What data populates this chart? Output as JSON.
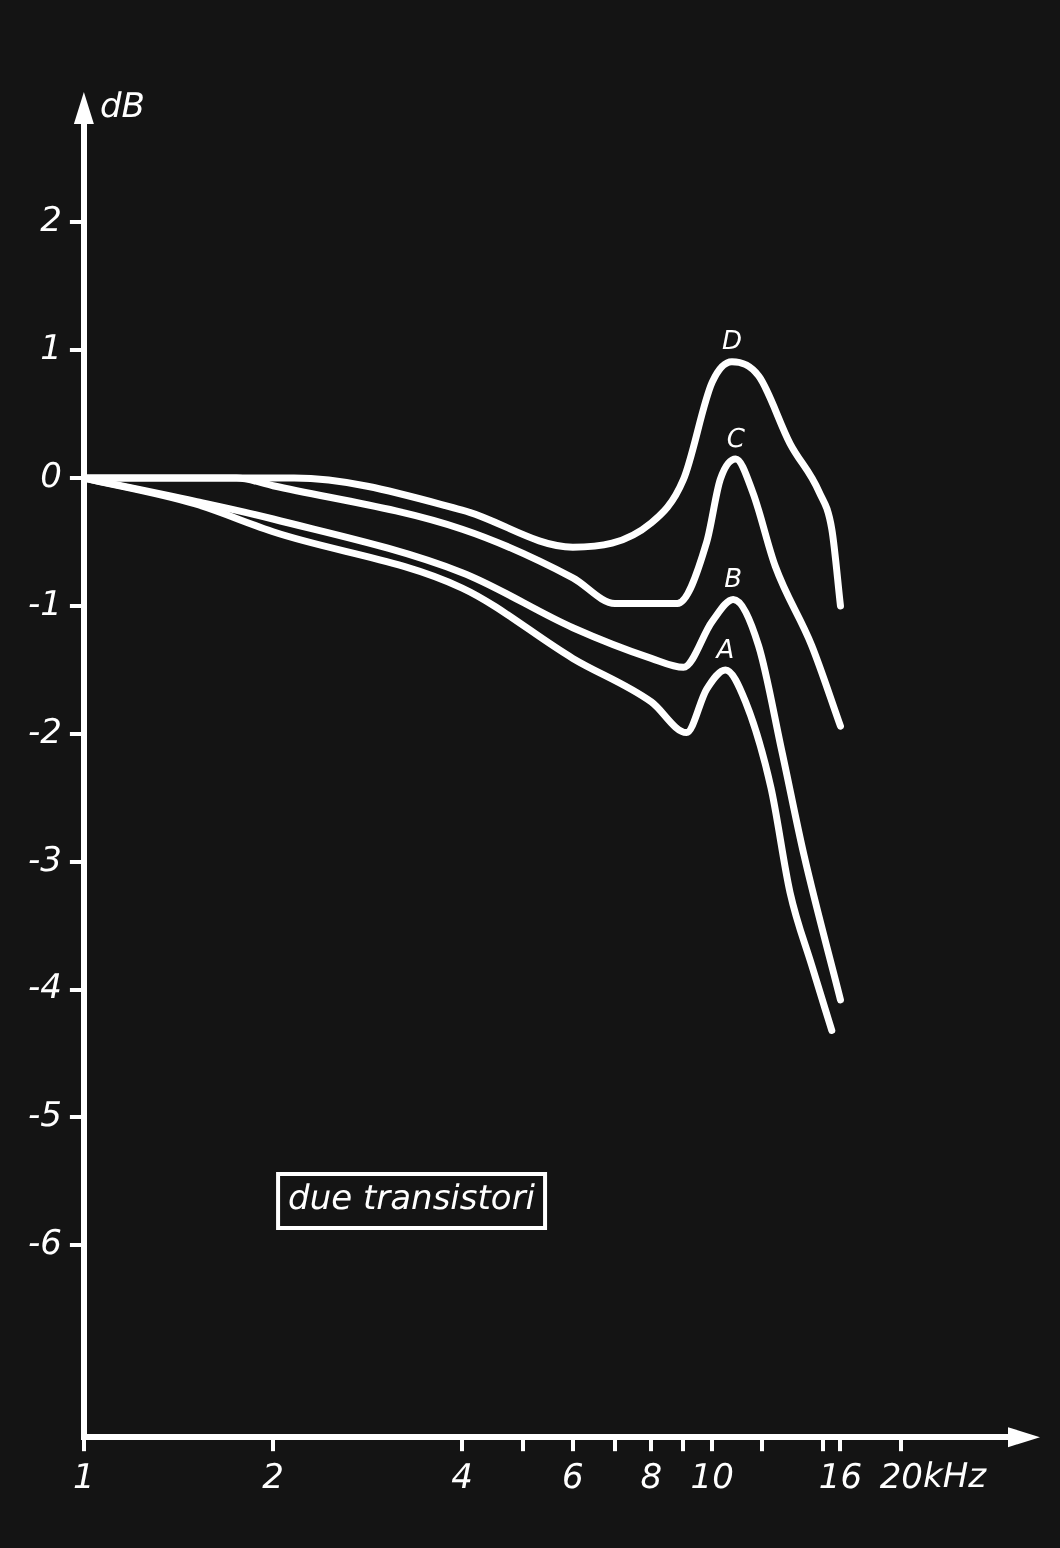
{
  "chart_data": {
    "type": "line",
    "xlabel": "kHz",
    "ylabel": "dB",
    "log": "x",
    "xlim": [
      1,
      30
    ],
    "ylim": [
      -7.5,
      2.8
    ],
    "xticks": [
      1,
      2,
      4,
      {
        "value": 5,
        "label": null
      },
      6,
      {
        "value": 7,
        "label": null
      },
      8,
      {
        "value": 9,
        "label": null
      },
      10,
      {
        "value": 12,
        "label": null
      },
      {
        "value": 15,
        "label": null
      },
      16,
      20
    ],
    "yticks": [
      -6,
      -5,
      -4,
      -3,
      -2,
      -1,
      0,
      1,
      2
    ],
    "grid": false,
    "legend": false,
    "marker": "none",
    "line_style": "solid",
    "annotations": [
      "due transistori"
    ],
    "series": [
      {
        "name": "A",
        "color": "#ffffff",
        "x": [
          1,
          1.5,
          2,
          4,
          6,
          8,
          9.1,
          9.8,
          10.5,
          11.3,
          12.4,
          13.3,
          14.4,
          15.5
        ],
        "values": [
          0,
          -0.2,
          -0.42,
          -0.86,
          -1.41,
          -1.75,
          -1.99,
          -1.65,
          -1.5,
          -1.75,
          -2.42,
          -3.24,
          -3.81,
          -4.32
        ]
      },
      {
        "name": "B",
        "color": "#ffffff",
        "x": [
          1,
          1.5,
          2,
          4,
          6,
          8,
          9,
          10,
          10.8,
          11.85,
          12.9,
          14,
          16
        ],
        "values": [
          0,
          -0.18,
          -0.32,
          -0.74,
          -1.17,
          -1.41,
          -1.48,
          -1.12,
          -0.95,
          -1.31,
          -2.13,
          -2.95,
          -4.08
        ]
      },
      {
        "name": "C",
        "color": "#ffffff",
        "x": [
          1,
          1.75,
          2,
          4,
          6,
          7,
          8.8,
          9.8,
          10.3,
          10.9,
          11.6,
          12.6,
          14.4,
          16
        ],
        "values": [
          0,
          0,
          -0.06,
          -0.4,
          -0.78,
          -0.98,
          -0.98,
          -0.5,
          -0.01,
          0.15,
          -0.11,
          -0.69,
          -1.31,
          -1.94
        ]
      },
      {
        "name": "D",
        "color": "#ffffff",
        "x": [
          1,
          2.16,
          4,
          6,
          8,
          9,
          10,
          10.75,
          11.85,
          13.3,
          14.8,
          15.5,
          16
        ],
        "values": [
          0,
          0,
          -0.25,
          -0.54,
          -0.35,
          -0.01,
          0.75,
          0.91,
          0.8,
          0.27,
          -0.11,
          -0.4,
          -1
        ]
      }
    ]
  }
}
